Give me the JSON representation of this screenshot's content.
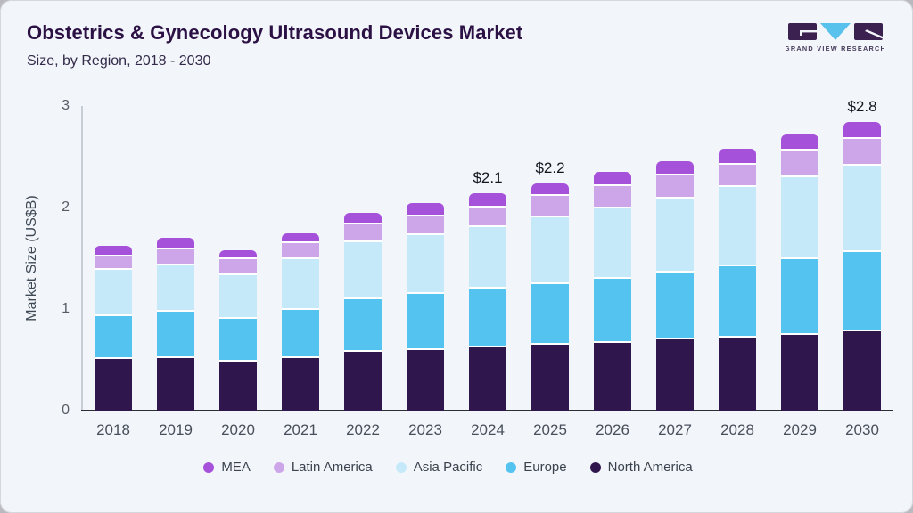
{
  "header": {
    "title": "Obstetrics & Gynecology Ultrasound Devices Market",
    "subtitle": "Size, by Region, 2018 - 2030",
    "logo_text": "GRAND VIEW RESEARCH"
  },
  "colors": {
    "card_background": "#f2f6fa",
    "frame": "#b9b9bf",
    "title_text": "#2c1145",
    "axis_line": "#2b2e35",
    "y_axis_line": "#c6cdd6",
    "logo_block": "#3a2150",
    "logo_triangle": "#58c1ec"
  },
  "chart_data": {
    "type": "bar",
    "stacked": true,
    "title": "Obstetrics & Gynecology Ultrasound Devices Market Size, by Region, 2018 - 2030",
    "xlabel": "",
    "ylabel": "Market Size (US$B)",
    "ylim": [
      0,
      3
    ],
    "yticks": [
      0,
      1,
      2,
      3
    ],
    "grid": false,
    "legend_position": "bottom",
    "categories": [
      "2018",
      "2019",
      "2020",
      "2021",
      "2022",
      "2023",
      "2024",
      "2025",
      "2026",
      "2027",
      "2028",
      "2029",
      "2030"
    ],
    "series": [
      {
        "name": "North America",
        "color": "#2f164d",
        "values": [
          0.51,
          0.52,
          0.48,
          0.52,
          0.58,
          0.6,
          0.62,
          0.65,
          0.67,
          0.7,
          0.72,
          0.75,
          0.78
        ]
      },
      {
        "name": "Europe",
        "color": "#55c3f0",
        "values": [
          0.42,
          0.45,
          0.42,
          0.47,
          0.52,
          0.55,
          0.58,
          0.6,
          0.63,
          0.66,
          0.7,
          0.74,
          0.78
        ]
      },
      {
        "name": "Asia Pacific",
        "color": "#c6e9f9",
        "values": [
          0.46,
          0.46,
          0.43,
          0.5,
          0.56,
          0.58,
          0.61,
          0.65,
          0.69,
          0.73,
          0.78,
          0.81,
          0.85
        ]
      },
      {
        "name": "Latin America",
        "color": "#cda6ea",
        "values": [
          0.13,
          0.16,
          0.16,
          0.16,
          0.17,
          0.18,
          0.19,
          0.21,
          0.22,
          0.23,
          0.22,
          0.26,
          0.27
        ]
      },
      {
        "name": "MEA",
        "color": "#a651d9",
        "values": [
          0.1,
          0.11,
          0.09,
          0.1,
          0.12,
          0.13,
          0.14,
          0.13,
          0.14,
          0.14,
          0.16,
          0.16,
          0.16
        ]
      }
    ],
    "bar_labels": [
      "",
      "",
      "",
      "",
      "",
      "",
      "$2.1",
      "$2.2",
      "",
      "",
      "",
      "",
      "$2.8"
    ],
    "legend": [
      "MEA",
      "Latin America",
      "Asia Pacific",
      "Europe",
      "North America"
    ]
  }
}
